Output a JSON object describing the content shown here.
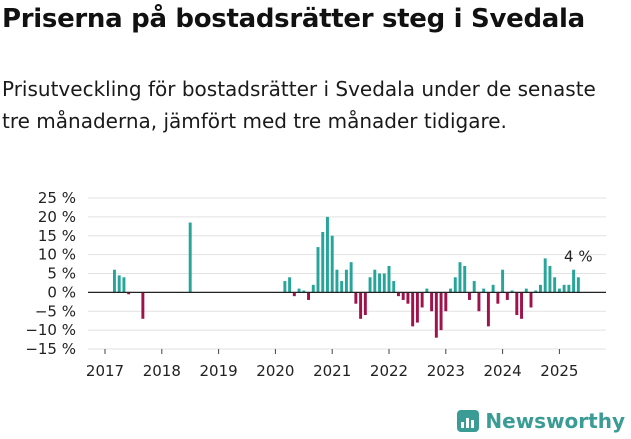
{
  "title": "Priserna på bostadsrätter steg i Svedala",
  "subtitle": "Prisutveckling för bostadsrätter i Svedala under de senaste tre månaderna, jämfört med tre månader tidigare.",
  "brand": "Newsworthy",
  "colors": {
    "positive": "#26a69a",
    "negative": "#a0124a",
    "brand": "#3a9c94"
  },
  "chart_data": {
    "type": "bar",
    "x_tick_labels": [
      "2017",
      "2018",
      "2019",
      "2020",
      "2021",
      "2022",
      "2023",
      "2024",
      "2025"
    ],
    "y_tick_labels": [
      "25 %",
      "20 %",
      "15 %",
      "10 %",
      "5 %",
      "0 %",
      "−5 %",
      "−10 %",
      "−15 %"
    ],
    "ylim": [
      -15,
      25
    ],
    "grid": true,
    "annotation": "4 %",
    "x": [
      "2017-03",
      "2017-04",
      "2017-05",
      "2017-06",
      "2017-09",
      "2018-07",
      "2020-03",
      "2020-04",
      "2020-05",
      "2020-06",
      "2020-07",
      "2020-08",
      "2020-09",
      "2020-10",
      "2020-11",
      "2020-12",
      "2021-01",
      "2021-02",
      "2021-03",
      "2021-04",
      "2021-05",
      "2021-06",
      "2021-07",
      "2021-08",
      "2021-09",
      "2021-10",
      "2021-11",
      "2021-12",
      "2022-01",
      "2022-02",
      "2022-03",
      "2022-04",
      "2022-05",
      "2022-06",
      "2022-07",
      "2022-08",
      "2022-09",
      "2022-10",
      "2022-11",
      "2022-12",
      "2023-01",
      "2023-02",
      "2023-03",
      "2023-04",
      "2023-05",
      "2023-06",
      "2023-07",
      "2023-08",
      "2023-09",
      "2023-10",
      "2023-11",
      "2023-12",
      "2024-01",
      "2024-02",
      "2024-03",
      "2024-04",
      "2024-05",
      "2024-06",
      "2024-07",
      "2024-08",
      "2024-09",
      "2024-10",
      "2024-11",
      "2024-12",
      "2025-01",
      "2025-02",
      "2025-03",
      "2025-04",
      "2025-05"
    ],
    "values": [
      6,
      4.5,
      4,
      -0.5,
      -7,
      18.5,
      3,
      4,
      -1,
      1,
      0.5,
      -2,
      2,
      12,
      16,
      20,
      15,
      6,
      3,
      6,
      8,
      -3,
      -7,
      -6,
      4,
      6,
      5,
      5,
      7,
      3,
      -1,
      -2,
      -3,
      -9,
      -8,
      -4,
      1,
      -5,
      -12,
      -10,
      -5,
      1,
      4,
      8,
      7,
      -2,
      3,
      -5,
      1,
      -9,
      2,
      -3,
      6,
      -2,
      0.5,
      -6,
      -7,
      1,
      -4,
      0.5,
      2,
      9,
      7,
      4,
      1,
      2,
      2,
      6,
      4
    ]
  }
}
